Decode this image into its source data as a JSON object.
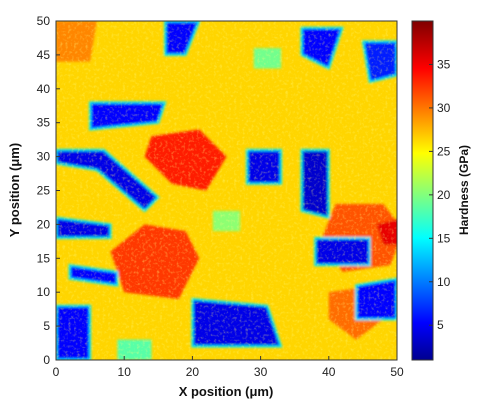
{
  "chart_data": {
    "type": "heatmap",
    "title": "",
    "xlabel": "X position (μm)",
    "ylabel": "Y position (μm)",
    "xlim": [
      0,
      50
    ],
    "ylim": [
      0,
      50
    ],
    "x_ticks": [
      "0",
      "10",
      "20",
      "30",
      "40",
      "50"
    ],
    "y_ticks": [
      "0",
      "5",
      "10",
      "15",
      "20",
      "25",
      "30",
      "35",
      "40",
      "45",
      "50"
    ],
    "colorbar": {
      "label": "Hardness (GPa)",
      "range": [
        1,
        40
      ],
      "ticks": [
        "5",
        "10",
        "15",
        "20",
        "25",
        "30",
        "35"
      ],
      "colormap": "jet"
    },
    "grid": false,
    "base_value": 27,
    "regions": [
      {
        "phase": "high",
        "value": 34,
        "polygon": [
          [
            14,
            33
          ],
          [
            21,
            34
          ],
          [
            25,
            30
          ],
          [
            22,
            25
          ],
          [
            17,
            26
          ],
          [
            13,
            30
          ]
        ]
      },
      {
        "phase": "high",
        "value": 33,
        "polygon": [
          [
            8,
            16
          ],
          [
            13,
            20
          ],
          [
            19,
            19
          ],
          [
            21,
            15
          ],
          [
            18,
            9
          ],
          [
            10,
            10
          ]
        ]
      },
      {
        "phase": "high",
        "value": 32,
        "polygon": [
          [
            41,
            23
          ],
          [
            48,
            23
          ],
          [
            51,
            19
          ],
          [
            49,
            14
          ],
          [
            42,
            13
          ],
          [
            39,
            18
          ]
        ]
      },
      {
        "phase": "high",
        "value": 31,
        "polygon": [
          [
            40,
            10
          ],
          [
            47,
            11
          ],
          [
            48,
            6
          ],
          [
            44,
            3
          ],
          [
            40,
            6
          ]
        ]
      },
      {
        "phase": "high",
        "value": 36,
        "polygon": [
          [
            47,
            20
          ],
          [
            51,
            21
          ],
          [
            51,
            17
          ],
          [
            48,
            17
          ]
        ]
      },
      {
        "phase": "high",
        "value": 30,
        "polygon": [
          [
            0,
            50
          ],
          [
            6,
            50
          ],
          [
            5,
            44
          ],
          [
            0,
            44
          ]
        ]
      },
      {
        "phase": "low",
        "value": 6,
        "polygon": [
          [
            16,
            50
          ],
          [
            21,
            50
          ],
          [
            19,
            45
          ],
          [
            16,
            45
          ]
        ]
      },
      {
        "phase": "low",
        "value": 6,
        "polygon": [
          [
            36,
            49
          ],
          [
            42,
            49
          ],
          [
            40,
            43
          ],
          [
            36,
            45
          ]
        ]
      },
      {
        "phase": "low",
        "value": 7,
        "polygon": [
          [
            45,
            47
          ],
          [
            50,
            47
          ],
          [
            50,
            42
          ],
          [
            46,
            41
          ]
        ]
      },
      {
        "phase": "low",
        "value": 6,
        "polygon": [
          [
            5,
            38
          ],
          [
            16,
            38
          ],
          [
            15,
            35
          ],
          [
            5,
            34
          ]
        ]
      },
      {
        "phase": "low",
        "value": 5,
        "polygon": [
          [
            0,
            31
          ],
          [
            7,
            31
          ],
          [
            15,
            24
          ],
          [
            13,
            22
          ],
          [
            6,
            28
          ],
          [
            0,
            29
          ]
        ]
      },
      {
        "phase": "low",
        "value": 5,
        "polygon": [
          [
            28,
            31
          ],
          [
            33,
            31
          ],
          [
            33,
            26
          ],
          [
            28,
            26
          ]
        ]
      },
      {
        "phase": "low",
        "value": 4,
        "polygon": [
          [
            36,
            31
          ],
          [
            40,
            31
          ],
          [
            40,
            21
          ],
          [
            36,
            22
          ]
        ]
      },
      {
        "phase": "low",
        "value": 5,
        "polygon": [
          [
            0,
            21
          ],
          [
            8,
            20
          ],
          [
            8,
            18
          ],
          [
            0,
            18
          ]
        ]
      },
      {
        "phase": "low",
        "value": 6,
        "polygon": [
          [
            2,
            14
          ],
          [
            9,
            13
          ],
          [
            9,
            11
          ],
          [
            2,
            12
          ]
        ]
      },
      {
        "phase": "low",
        "value": 5,
        "polygon": [
          [
            20,
            9
          ],
          [
            31,
            8
          ],
          [
            33,
            2
          ],
          [
            20,
            2
          ]
        ]
      },
      {
        "phase": "low",
        "value": 6,
        "polygon": [
          [
            0,
            8
          ],
          [
            5,
            8
          ],
          [
            5,
            0
          ],
          [
            0,
            0
          ]
        ]
      },
      {
        "phase": "low",
        "value": 5,
        "polygon": [
          [
            38,
            18
          ],
          [
            46,
            18
          ],
          [
            46,
            14
          ],
          [
            38,
            14
          ]
        ]
      },
      {
        "phase": "low",
        "value": 6,
        "polygon": [
          [
            44,
            11
          ],
          [
            50,
            12
          ],
          [
            50,
            6
          ],
          [
            44,
            6
          ]
        ]
      },
      {
        "phase": "mid",
        "value": 20,
        "polygon": [
          [
            29,
            46
          ],
          [
            33,
            46
          ],
          [
            33,
            43
          ],
          [
            29,
            43
          ]
        ]
      },
      {
        "phase": "mid",
        "value": 21,
        "polygon": [
          [
            23,
            22
          ],
          [
            27,
            22
          ],
          [
            27,
            19
          ],
          [
            23,
            19
          ]
        ]
      },
      {
        "phase": "mid",
        "value": 19,
        "polygon": [
          [
            9,
            3
          ],
          [
            14,
            3
          ],
          [
            14,
            0
          ],
          [
            9,
            0
          ]
        ]
      }
    ]
  }
}
